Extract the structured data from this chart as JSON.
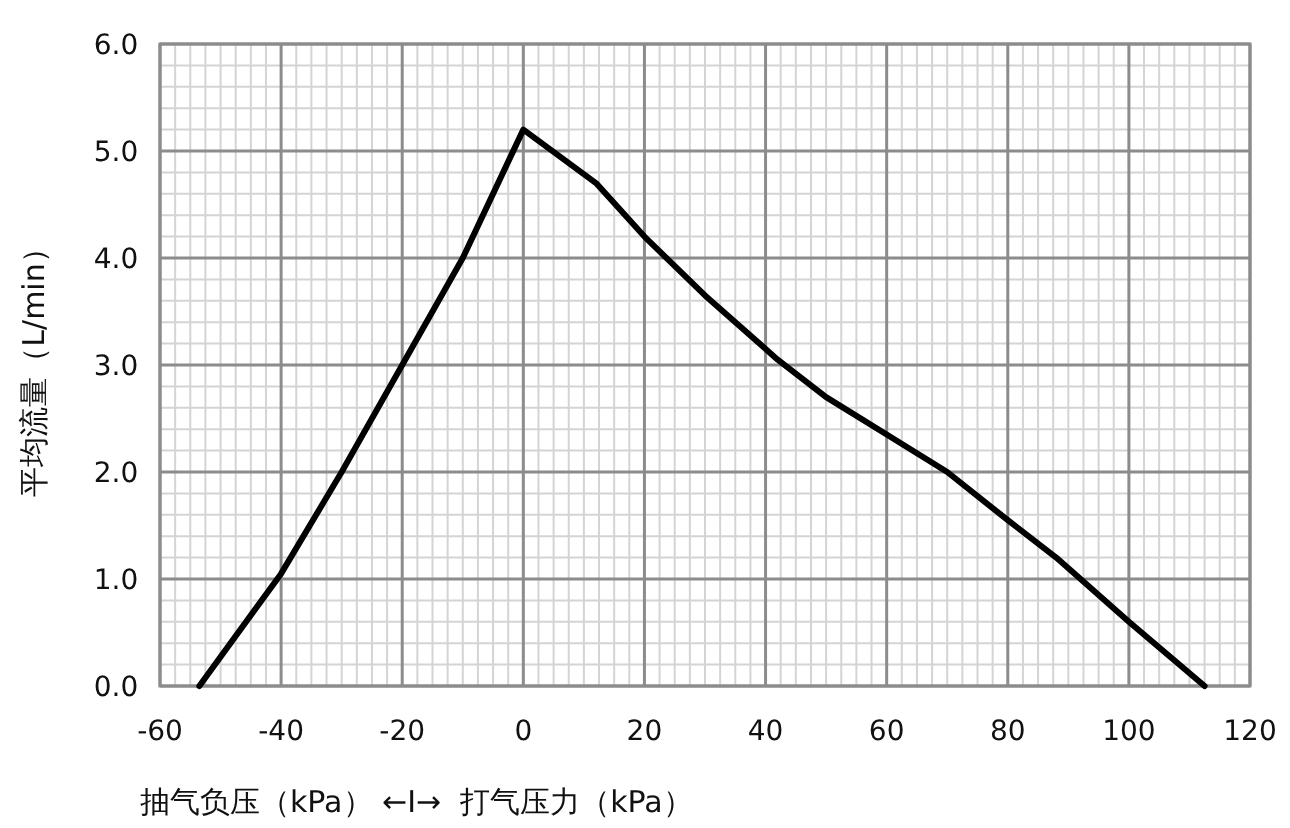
{
  "chart_data": {
    "type": "line",
    "ylabel": "平均流量（L/min）",
    "xlabel": "抽气负压（kPa） ←I→  打气压力（kPa）",
    "xlim": [
      -60,
      120
    ],
    "xticks": [
      -60,
      -40,
      -20,
      0,
      20,
      40,
      60,
      80,
      100,
      120
    ],
    "ylim": [
      0,
      6
    ],
    "yticks": [
      {
        "value": 0,
        "label": "0.0"
      },
      {
        "value": 1,
        "label": "1.0"
      },
      {
        "value": 2,
        "label": "2.0"
      },
      {
        "value": 3,
        "label": "3.0"
      },
      {
        "value": 4,
        "label": "4.0"
      },
      {
        "value": 5,
        "label": "5.0"
      },
      {
        "value": 6,
        "label": "6.0"
      }
    ],
    "grid": true,
    "series": [
      {
        "color": "#000000",
        "x": [
          -53.5,
          -40,
          -30,
          -20,
          -10,
          0,
          12,
          20,
          30,
          42,
          50,
          60,
          70,
          80,
          88,
          100,
          112.5
        ],
        "values": [
          0,
          1.05,
          2.0,
          3.0,
          4.0,
          5.2,
          4.7,
          4.2,
          3.65,
          3.05,
          2.7,
          2.35,
          2.0,
          1.55,
          1.2,
          0.6,
          0
        ]
      }
    ]
  }
}
